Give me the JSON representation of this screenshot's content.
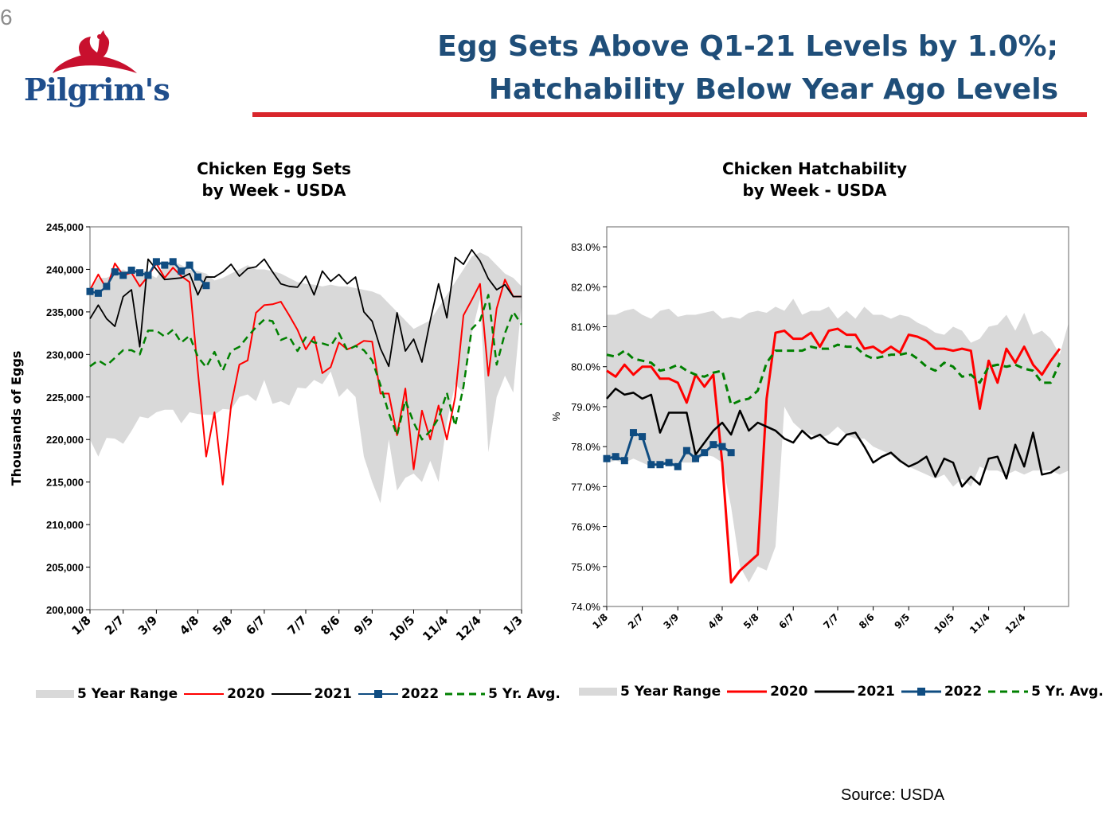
{
  "page_number": "6",
  "logo": {
    "text": "Pilgrim's"
  },
  "title": {
    "line1": "Egg Sets Above Q1-21 Levels by 1.0%;",
    "line2": "Hatchability Below Year Ago Levels"
  },
  "source": "Source:  USDA",
  "colors": {
    "title": "#1f4e79",
    "rule": "#d9262c",
    "range": "#d9d9d9",
    "s2020": "#ff0000",
    "s2021": "#000000",
    "s2022": "#0f4c81",
    "avg": "#008000"
  },
  "chart_data": [
    {
      "type": "line",
      "title_line1": "Chicken Egg Sets",
      "title_line2": "by Week - USDA",
      "ylabel": "Thousands of Eggs",
      "xlabel": "",
      "ylim": [
        200000,
        245000
      ],
      "yticks": [
        200000,
        205000,
        210000,
        215000,
        220000,
        225000,
        230000,
        235000,
        240000,
        245000
      ],
      "ytick_labels": [
        "200,000",
        "205,000",
        "210,000",
        "215,000",
        "220,000",
        "225,000",
        "230,000",
        "235,000",
        "240,000",
        "245,000"
      ],
      "xlim": [
        0,
        52
      ],
      "xticks": [
        0,
        4,
        8,
        13,
        17,
        21,
        26,
        30,
        34,
        39,
        43,
        47,
        52
      ],
      "xtick_labels": [
        "1/8",
        "2/7",
        "3/9",
        "4/8",
        "5/8",
        "6/7",
        "7/7",
        "8/6",
        "9/5",
        "10/5",
        "11/4",
        "12/4",
        "1/3"
      ],
      "legend": [
        "5 Year Range",
        "2020",
        "2021",
        "2022",
        "5 Yr. Avg."
      ],
      "legend_position": "bottom",
      "grid": false,
      "range_upper": [
        237500,
        239000,
        239000,
        239500,
        240000,
        239500,
        240000,
        239500,
        239000,
        240500,
        241000,
        240500,
        240000,
        239800,
        239500,
        238700,
        239000,
        239500,
        240000,
        240500,
        240000,
        240000,
        239800,
        239500,
        239000,
        238500,
        238300,
        238200,
        238000,
        238200,
        238000,
        238000,
        237800,
        237600,
        237400,
        237000,
        236000,
        235000,
        234000,
        233000,
        233500,
        234000,
        235500,
        237000,
        238500,
        240000,
        241500,
        242000,
        241500,
        240500,
        239500,
        239000,
        238000
      ],
      "range_lower": [
        220000,
        218000,
        220200,
        220100,
        219500,
        221000,
        222700,
        222500,
        223200,
        223500,
        223500,
        221900,
        223200,
        223000,
        222900,
        222900,
        223600,
        223500,
        225000,
        225300,
        224500,
        227000,
        224200,
        224500,
        224000,
        226100,
        226000,
        227000,
        226500,
        228000,
        225000,
        226000,
        225000,
        218000,
        215000,
        212500,
        220000,
        214000,
        215500,
        216000,
        215000,
        217500,
        215000,
        222000,
        226500,
        225500,
        232500,
        236500,
        218500,
        225000,
        227500,
        225500,
        236000
      ],
      "series": [
        {
          "name": "2020",
          "values": [
            237600,
            239400,
            237700,
            240700,
            239300,
            239600,
            238000,
            239200,
            240700,
            239000,
            240200,
            239200,
            238500,
            228000,
            218000,
            223200,
            214700,
            224000,
            228800,
            229300,
            234900,
            235800,
            235900,
            236200,
            234600,
            232900,
            230600,
            232100,
            227800,
            228500,
            231400,
            230600,
            231000,
            231600,
            231500,
            225400,
            225400,
            220500,
            226000,
            216500,
            223400,
            220000,
            224000,
            220000,
            225000,
            234600,
            236400,
            238300,
            227500,
            235400,
            238800,
            236800,
            236800
          ]
        },
        {
          "name": "2021",
          "values": [
            234200,
            235800,
            234200,
            233300,
            236800,
            237600,
            230900,
            241200,
            240000,
            238800,
            238900,
            239000,
            239500,
            237000,
            239100,
            239100,
            239700,
            240600,
            239200,
            240100,
            240300,
            241200,
            239700,
            238300,
            238000,
            237900,
            239200,
            237000,
            239800,
            238600,
            239400,
            238300,
            239100,
            235000,
            233900,
            230700,
            228600,
            234900,
            230400,
            231800,
            229100,
            234000,
            238300,
            234300,
            241400,
            240600,
            242300,
            241000,
            238900,
            237600,
            238200,
            236800,
            236800
          ]
        },
        {
          "name": "2022",
          "values": [
            237400,
            237200,
            238000,
            239700,
            239300,
            239900,
            239600,
            239300,
            240900,
            240500,
            240900,
            239800,
            240500,
            239100,
            238100
          ]
        },
        {
          "name": "5 Yr. Avg.",
          "values": [
            228600,
            229300,
            228700,
            229600,
            230500,
            230500,
            230000,
            232800,
            232800,
            232100,
            232900,
            231400,
            232200,
            229700,
            228500,
            230300,
            228100,
            230400,
            230900,
            232100,
            233200,
            234100,
            233900,
            231700,
            232100,
            230400,
            232000,
            231400,
            231300,
            231000,
            232500,
            230500,
            231000,
            230500,
            229300,
            226400,
            223100,
            220500,
            224600,
            222000,
            220000,
            221000,
            222500,
            225500,
            221600,
            226200,
            233000,
            234000,
            237000,
            228800,
            232500,
            235000,
            233500
          ]
        }
      ]
    },
    {
      "type": "line",
      "title_line1": "Chicken Hatchability",
      "title_line2": "by Week - USDA",
      "ylabel": "%",
      "xlabel": "",
      "ylim": [
        74.0,
        83.5
      ],
      "yticks": [
        74,
        75,
        76,
        77,
        78,
        79,
        80,
        81,
        82,
        83
      ],
      "ytick_labels": [
        "74.0%",
        "75.0%",
        "76.0%",
        "77.0%",
        "78.0%",
        "79.0%",
        "80.0%",
        "81.0%",
        "82.0%",
        "83.0%"
      ],
      "xlim": [
        0,
        52
      ],
      "xticks": [
        0,
        4,
        8,
        13,
        17,
        21,
        26,
        30,
        34,
        39,
        43,
        47
      ],
      "xtick_labels": [
        "1/8",
        "2/7",
        "3/9",
        "4/8",
        "5/8",
        "6/7",
        "7/7",
        "8/6",
        "9/5",
        "10/5",
        "11/4",
        "12/4"
      ],
      "legend": [
        "5 Year Range",
        "2020",
        "2021",
        "2022",
        "5 Yr. Avg."
      ],
      "legend_position": "bottom",
      "grid": false,
      "range_upper": [
        81.3,
        81.3,
        81.4,
        81.45,
        81.3,
        81.2,
        81.4,
        81.45,
        81.25,
        81.3,
        81.3,
        81.35,
        81.4,
        81.2,
        81.25,
        81.2,
        81.35,
        81.4,
        81.35,
        81.5,
        81.4,
        81.7,
        81.3,
        81.4,
        81.4,
        81.5,
        81.2,
        81.4,
        81.2,
        81.5,
        81.3,
        81.3,
        81.2,
        81.3,
        81.25,
        81.1,
        81.0,
        80.85,
        80.8,
        81.0,
        80.9,
        80.6,
        80.7,
        81.0,
        81.05,
        81.3,
        80.9,
        81.35,
        80.8,
        80.9,
        80.7,
        80.3,
        81.1
      ],
      "range_lower": [
        77.6,
        77.65,
        77.6,
        77.7,
        77.6,
        77.5,
        77.55,
        77.55,
        77.6,
        77.6,
        77.6,
        77.8,
        77.75,
        77.6,
        76.5,
        75.0,
        74.6,
        75.0,
        74.9,
        75.5,
        79.0,
        78.6,
        78.4,
        78.3,
        78.2,
        78.3,
        78.5,
        78.3,
        78.2,
        78.2,
        78.0,
        77.9,
        77.8,
        77.6,
        77.5,
        77.4,
        77.3,
        77.2,
        77.3,
        77.0,
        77.2,
        77.0,
        77.5,
        77.4,
        77.4,
        77.3,
        77.4,
        77.3,
        77.4,
        77.4,
        77.4,
        77.3,
        77.4
      ],
      "series": [
        {
          "name": "2020",
          "values": [
            79.9,
            79.75,
            80.05,
            79.8,
            80.0,
            80.0,
            79.7,
            79.7,
            79.6,
            79.1,
            79.8,
            79.5,
            79.8,
            77.6,
            74.6,
            74.9,
            75.1,
            75.3,
            79.2,
            80.85,
            80.9,
            80.7,
            80.7,
            80.85,
            80.5,
            80.9,
            80.95,
            80.8,
            80.8,
            80.45,
            80.5,
            80.35,
            80.5,
            80.35,
            80.8,
            80.75,
            80.65,
            80.45,
            80.45,
            80.4,
            80.45,
            80.4,
            78.95,
            80.15,
            79.6,
            80.45,
            80.1,
            80.5,
            80.05,
            79.8,
            80.15,
            80.45
          ]
        },
        {
          "name": "2021",
          "values": [
            79.2,
            79.45,
            79.3,
            79.35,
            79.2,
            79.3,
            78.35,
            78.85,
            78.85,
            78.85,
            77.8,
            78.1,
            78.4,
            78.6,
            78.3,
            78.9,
            78.4,
            78.6,
            78.5,
            78.4,
            78.2,
            78.1,
            78.4,
            78.2,
            78.3,
            78.1,
            78.05,
            78.3,
            78.35,
            78.0,
            77.6,
            77.75,
            77.85,
            77.65,
            77.5,
            77.6,
            77.75,
            77.25,
            77.7,
            77.6,
            77.0,
            77.25,
            77.05,
            77.7,
            77.75,
            77.2,
            78.05,
            77.5,
            78.35,
            77.3,
            77.35,
            77.5
          ]
        },
        {
          "name": "2022",
          "values": [
            77.7,
            77.75,
            77.65,
            78.35,
            78.25,
            77.55,
            77.55,
            77.6,
            77.5,
            77.9,
            77.7,
            77.85,
            78.05,
            78.0,
            77.85
          ]
        },
        {
          "name": "5 Yr. Avg.",
          "values": [
            80.3,
            80.25,
            80.4,
            80.2,
            80.15,
            80.1,
            79.9,
            79.95,
            80.05,
            79.9,
            79.8,
            79.75,
            79.85,
            79.9,
            79.05,
            79.15,
            79.2,
            79.4,
            80.1,
            80.4,
            80.4,
            80.4,
            80.4,
            80.5,
            80.45,
            80.45,
            80.55,
            80.5,
            80.5,
            80.3,
            80.2,
            80.25,
            80.3,
            80.3,
            80.35,
            80.2,
            80.0,
            79.9,
            80.1,
            80.0,
            79.75,
            79.8,
            79.6,
            80.0,
            80.05,
            80.0,
            80.05,
            79.95,
            79.9,
            79.6,
            79.6,
            80.1
          ]
        }
      ]
    }
  ]
}
